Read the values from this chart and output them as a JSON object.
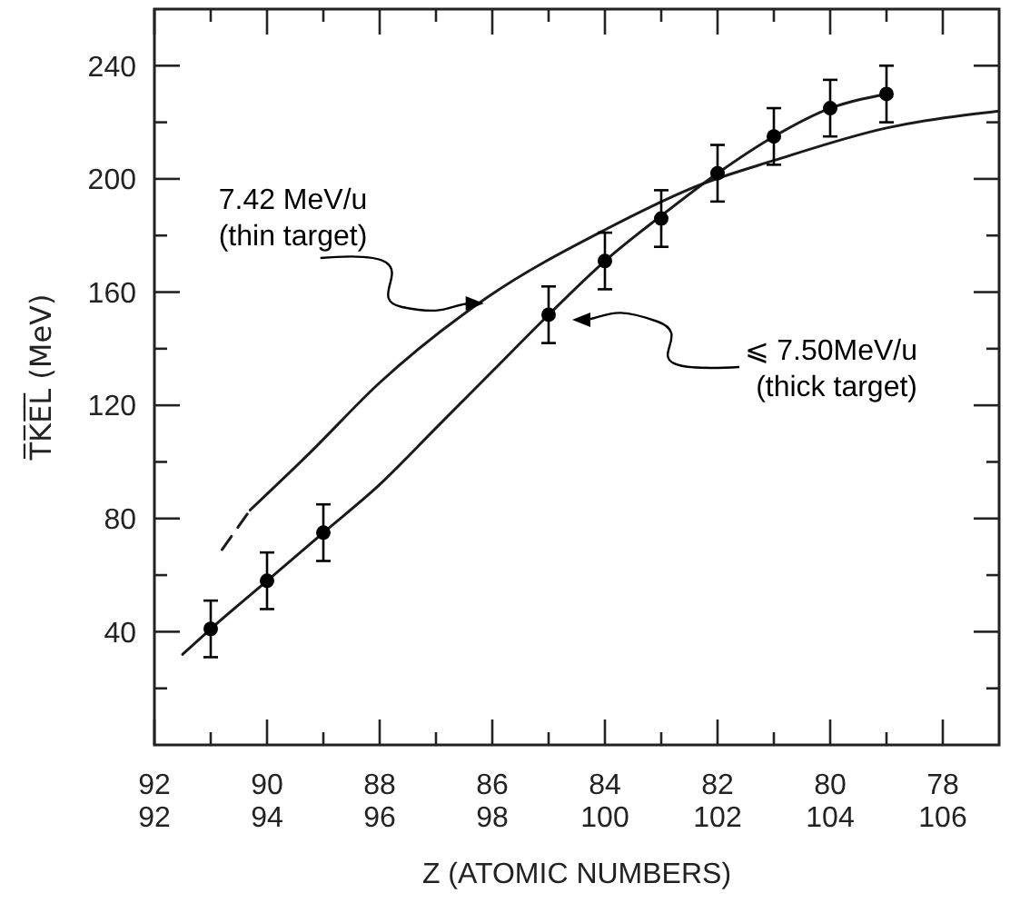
{
  "chart_data": {
    "type": "line",
    "xlabel": "Z  (ATOMIC  NUMBERS)",
    "ylabel": "T̅K̅E̅L̅ (MeV)",
    "xlim": [
      92,
      107
    ],
    "xticks": [
      92,
      {
        "value": 93,
        "label": null
      },
      94,
      {
        "value": 95,
        "label": null
      },
      96,
      {
        "value": 97,
        "label": null
      },
      98,
      {
        "value": 99,
        "label": null
      },
      100,
      {
        "value": 101,
        "label": null
      },
      102,
      {
        "value": 103,
        "label": null
      },
      104,
      {
        "value": 105,
        "label": null
      },
      106
    ],
    "x2lim": [
      92,
      77
    ],
    "x2ticks": [
      92,
      90,
      88,
      86,
      84,
      82,
      80,
      78
    ],
    "ylim": [
      0,
      260
    ],
    "yticks": [
      {
        "value": 20,
        "label": null
      },
      40,
      {
        "value": 60,
        "label": null
      },
      80,
      {
        "value": 100,
        "label": null
      },
      120,
      {
        "value": 140,
        "label": null
      },
      160,
      {
        "value": 180,
        "label": null
      },
      200,
      {
        "value": 220,
        "label": null
      },
      240
    ],
    "series": [
      {
        "color": "#1a1a1a",
        "line_style": "solid",
        "x": [
          92.5,
          93,
          94,
          95,
          96,
          97,
          98,
          99,
          100,
          101,
          102,
          103,
          104,
          105
        ],
        "values": [
          32,
          41,
          58,
          75,
          92,
          112,
          132,
          152,
          171,
          187,
          202,
          215,
          225,
          230
        ]
      },
      {
        "color": "#1a1a1a",
        "line_style": "dashed",
        "x": [
          93.2,
          93.7
        ],
        "values": [
          69,
          83
        ]
      },
      {
        "color": "#1a1a1a",
        "line_style": "solid",
        "x": [
          93.7,
          94.75,
          96,
          97.9,
          100,
          101.7,
          103,
          105,
          107
        ],
        "values": [
          83,
          103,
          128,
          158,
          182,
          198,
          206.5,
          218,
          224
        ]
      },
      {
        "type": "scatter",
        "color": "#000000",
        "marker": "circle",
        "x": [
          93,
          94,
          95,
          99,
          100,
          101,
          102,
          103,
          104,
          105
        ],
        "values": [
          41,
          58,
          75,
          152,
          171,
          186,
          202,
          215,
          225,
          230
        ],
        "errors": [
          10,
          10,
          10,
          10,
          10,
          10,
          10,
          10,
          10,
          10
        ]
      }
    ],
    "annotations": [
      {
        "text": "7.42 MeV/u\n(thin target)",
        "x": 97.85,
        "y": 156
      },
      "⩽ 7.50MeV/u\n(thick target)"
    ]
  }
}
